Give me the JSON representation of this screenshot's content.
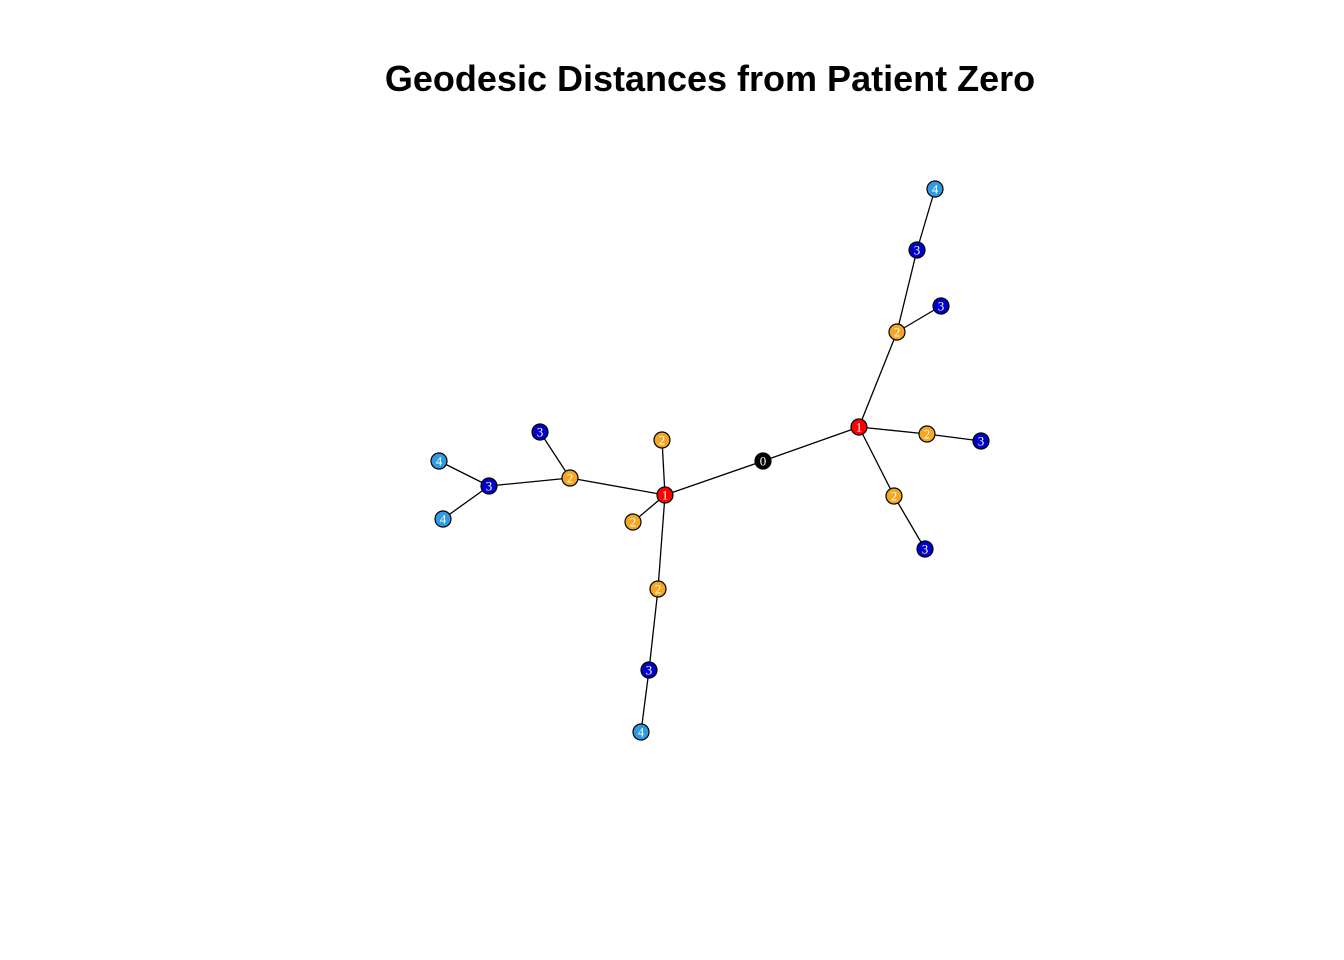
{
  "title": "Geodesic Distances from Patient Zero",
  "distance_colors": {
    "0": "#000000",
    "1": "#ff0000",
    "2": "#f5a623",
    "3": "#0000cc",
    "4": "#2f9be8"
  },
  "nodes": [
    {
      "id": "n0",
      "label": "0",
      "distance": 0
    },
    {
      "id": "n1",
      "label": "1",
      "distance": 1
    },
    {
      "id": "n2",
      "label": "1",
      "distance": 1
    },
    {
      "id": "n3",
      "label": "2",
      "distance": 2
    },
    {
      "id": "n4",
      "label": "2",
      "distance": 2
    },
    {
      "id": "n5",
      "label": "2",
      "distance": 2
    },
    {
      "id": "n6",
      "label": "2",
      "distance": 2
    },
    {
      "id": "n7",
      "label": "3",
      "distance": 3
    },
    {
      "id": "n8",
      "label": "3",
      "distance": 3
    },
    {
      "id": "n9",
      "label": "4",
      "distance": 4
    },
    {
      "id": "n10",
      "label": "4",
      "distance": 4
    },
    {
      "id": "n11",
      "label": "3",
      "distance": 3
    },
    {
      "id": "n12",
      "label": "4",
      "distance": 4
    },
    {
      "id": "n13",
      "label": "2",
      "distance": 2
    },
    {
      "id": "n14",
      "label": "2",
      "distance": 2
    },
    {
      "id": "n15",
      "label": "2",
      "distance": 2
    },
    {
      "id": "n16",
      "label": "3",
      "distance": 3
    },
    {
      "id": "n17",
      "label": "3",
      "distance": 3
    },
    {
      "id": "n18",
      "label": "4",
      "distance": 4
    },
    {
      "id": "n19",
      "label": "3",
      "distance": 3
    },
    {
      "id": "n20",
      "label": "3",
      "distance": 3
    }
  ],
  "edges": [
    [
      "n0",
      "n1"
    ],
    [
      "n0",
      "n2"
    ],
    [
      "n1",
      "n3"
    ],
    [
      "n1",
      "n4"
    ],
    [
      "n1",
      "n5"
    ],
    [
      "n1",
      "n6"
    ],
    [
      "n6",
      "n7"
    ],
    [
      "n6",
      "n8"
    ],
    [
      "n8",
      "n9"
    ],
    [
      "n8",
      "n10"
    ],
    [
      "n5",
      "n11"
    ],
    [
      "n11",
      "n12"
    ],
    [
      "n2",
      "n13"
    ],
    [
      "n2",
      "n14"
    ],
    [
      "n2",
      "n15"
    ],
    [
      "n13",
      "n16"
    ],
    [
      "n13",
      "n17"
    ],
    [
      "n16",
      "n18"
    ],
    [
      "n14",
      "n19"
    ],
    [
      "n15",
      "n20"
    ]
  ]
}
